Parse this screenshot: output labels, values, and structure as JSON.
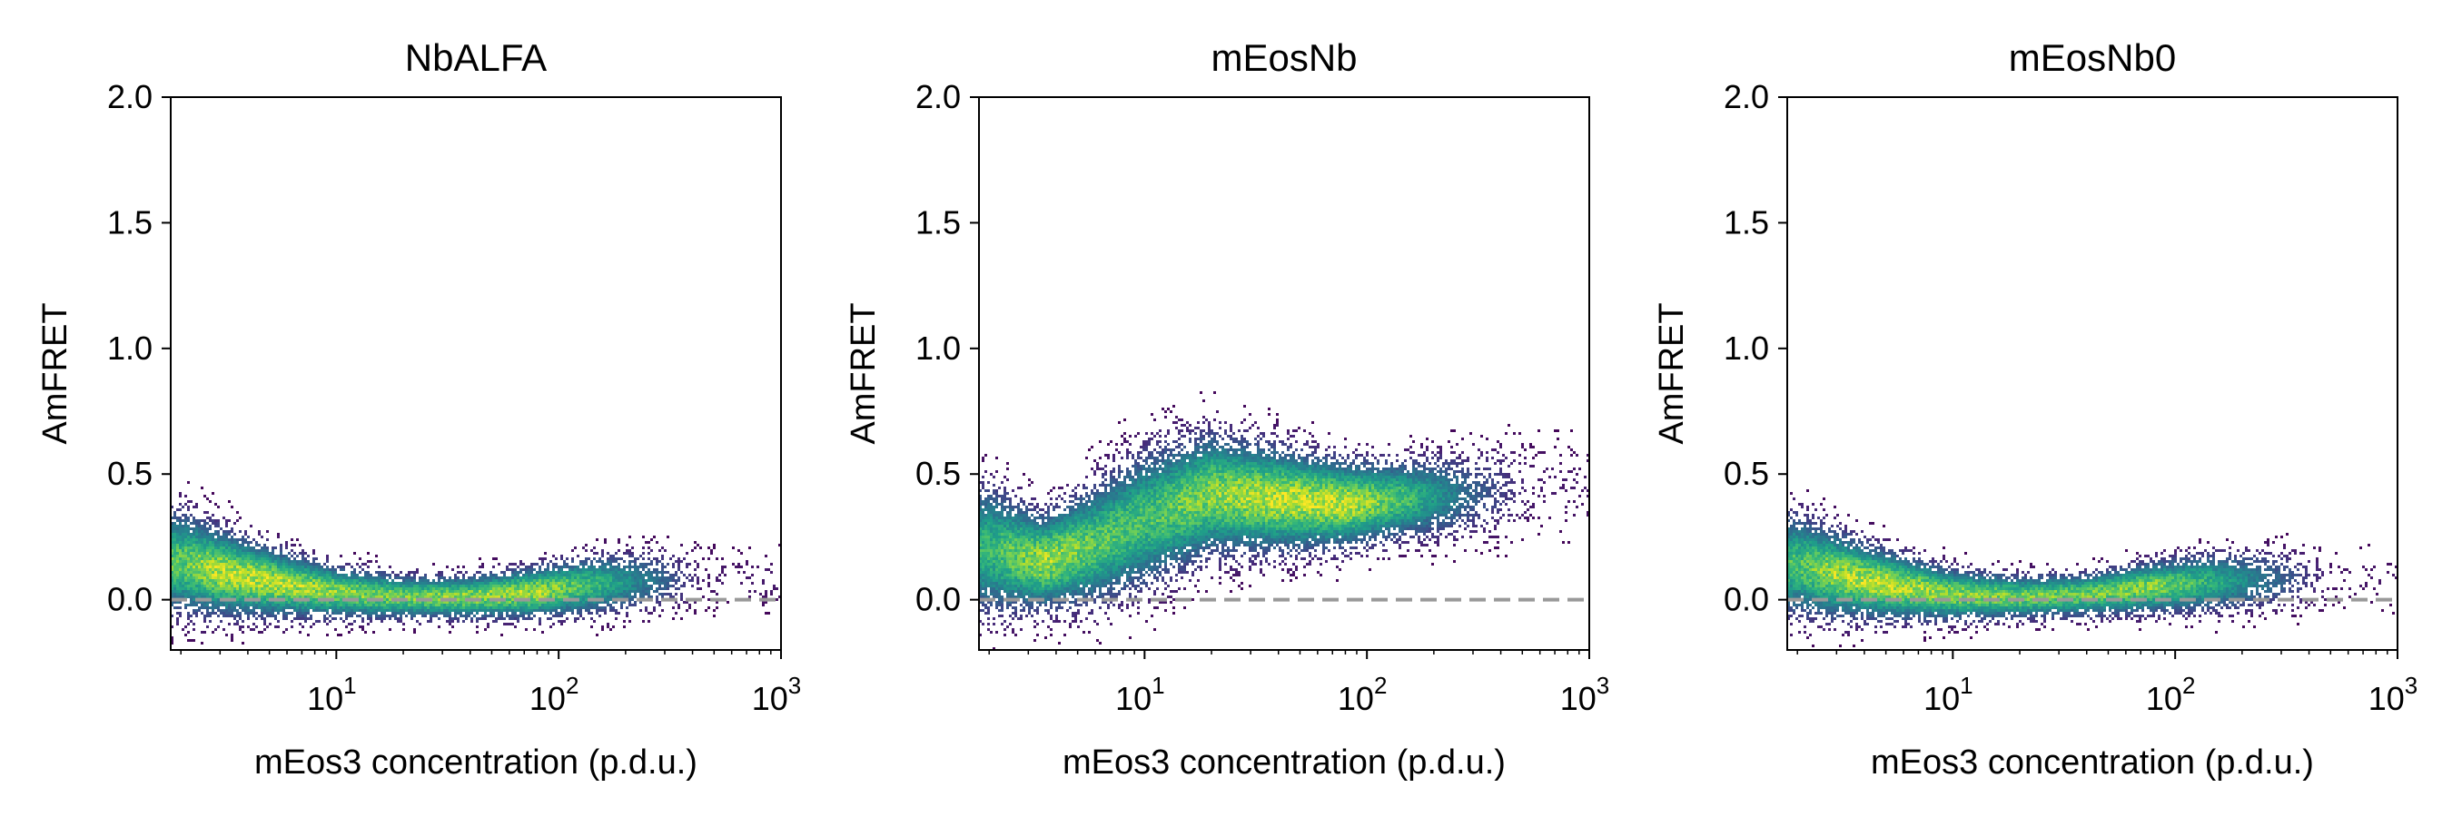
{
  "chart_data": [
    {
      "type": "heatmap",
      "title": "NbALFA",
      "xlabel": "mEos3 concentration (p.d.u.)",
      "ylabel": "AmFRET",
      "x_scale": "log",
      "xlim": [
        1.8,
        1000
      ],
      "ylim": [
        -0.2,
        2.0
      ],
      "x_ticks": [
        10,
        100,
        1000
      ],
      "x_tick_labels": [
        "10",
        "10",
        "10"
      ],
      "x_tick_exponents": [
        "1",
        "2",
        "3"
      ],
      "y_ticks": [
        0.0,
        0.5,
        1.0,
        1.5,
        2.0
      ],
      "y_tick_labels": [
        "0.0",
        "0.5",
        "1.0",
        "1.5",
        "2.0"
      ],
      "reference_line": {
        "y": 0.0,
        "style": "dashed",
        "color": "#999999"
      },
      "colormap": "viridis",
      "density_trend": [
        {
          "x": 2,
          "y": 0.15,
          "spread": 0.12,
          "weight": 0.8
        },
        {
          "x": 3,
          "y": 0.11,
          "spread": 0.1,
          "weight": 1.0
        },
        {
          "x": 5,
          "y": 0.07,
          "spread": 0.08,
          "weight": 1.0
        },
        {
          "x": 10,
          "y": 0.03,
          "spread": 0.06,
          "weight": 0.9
        },
        {
          "x": 20,
          "y": 0.01,
          "spread": 0.05,
          "weight": 0.85
        },
        {
          "x": 40,
          "y": 0.01,
          "spread": 0.05,
          "weight": 0.9
        },
        {
          "x": 80,
          "y": 0.03,
          "spread": 0.06,
          "weight": 0.95
        },
        {
          "x": 150,
          "y": 0.06,
          "spread": 0.07,
          "weight": 0.7
        },
        {
          "x": 300,
          "y": 0.08,
          "spread": 0.07,
          "weight": 0.3
        },
        {
          "x": 450,
          "y": 0.08,
          "spread": 0.08,
          "weight": 0.06
        }
      ]
    },
    {
      "type": "heatmap",
      "title": "mEosNb",
      "xlabel": "mEos3 concentration (p.d.u.)",
      "ylabel": "AmFRET",
      "x_scale": "log",
      "xlim": [
        1.8,
        1000
      ],
      "ylim": [
        -0.2,
        2.0
      ],
      "x_ticks": [
        10,
        100,
        1000
      ],
      "x_tick_labels": [
        "10",
        "10",
        "10"
      ],
      "x_tick_exponents": [
        "1",
        "2",
        "3"
      ],
      "y_ticks": [
        0.0,
        0.5,
        1.0,
        1.5,
        2.0
      ],
      "y_tick_labels": [
        "0.0",
        "0.5",
        "1.0",
        "1.5",
        "2.0"
      ],
      "reference_line": {
        "y": 0.0,
        "style": "dashed",
        "color": "#999999"
      },
      "colormap": "viridis",
      "density_trend": [
        {
          "x": 2,
          "y": 0.2,
          "spread": 0.15,
          "weight": 0.7
        },
        {
          "x": 3.5,
          "y": 0.15,
          "spread": 0.11,
          "weight": 0.95
        },
        {
          "x": 6,
          "y": 0.22,
          "spread": 0.14,
          "weight": 0.8
        },
        {
          "x": 10,
          "y": 0.32,
          "spread": 0.16,
          "weight": 0.75
        },
        {
          "x": 20,
          "y": 0.42,
          "spread": 0.14,
          "weight": 0.9
        },
        {
          "x": 40,
          "y": 0.4,
          "spread": 0.12,
          "weight": 1.0
        },
        {
          "x": 80,
          "y": 0.38,
          "spread": 0.1,
          "weight": 1.0
        },
        {
          "x": 150,
          "y": 0.4,
          "spread": 0.09,
          "weight": 0.75
        },
        {
          "x": 300,
          "y": 0.42,
          "spread": 0.1,
          "weight": 0.3
        },
        {
          "x": 550,
          "y": 0.45,
          "spread": 0.12,
          "weight": 0.06
        }
      ]
    },
    {
      "type": "heatmap",
      "title": "mEosNb0",
      "xlabel": "mEos3 concentration (p.d.u.)",
      "ylabel": "AmFRET",
      "x_scale": "log",
      "xlim": [
        1.8,
        1000
      ],
      "ylim": [
        -0.2,
        2.0
      ],
      "x_ticks": [
        10,
        100,
        1000
      ],
      "x_tick_labels": [
        "10",
        "10",
        "10"
      ],
      "x_tick_exponents": [
        "1",
        "2",
        "3"
      ],
      "y_ticks": [
        0.0,
        0.5,
        1.0,
        1.5,
        2.0
      ],
      "y_tick_labels": [
        "0.0",
        "0.5",
        "1.0",
        "1.5",
        "2.0"
      ],
      "reference_line": {
        "y": 0.0,
        "style": "dashed",
        "color": "#999999"
      },
      "colormap": "viridis",
      "density_trend": [
        {
          "x": 2,
          "y": 0.14,
          "spread": 0.12,
          "weight": 0.75
        },
        {
          "x": 3,
          "y": 0.1,
          "spread": 0.1,
          "weight": 0.95
        },
        {
          "x": 5,
          "y": 0.06,
          "spread": 0.08,
          "weight": 1.0
        },
        {
          "x": 10,
          "y": 0.02,
          "spread": 0.06,
          "weight": 0.9
        },
        {
          "x": 20,
          "y": 0.01,
          "spread": 0.05,
          "weight": 0.85
        },
        {
          "x": 40,
          "y": 0.02,
          "spread": 0.05,
          "weight": 0.85
        },
        {
          "x": 80,
          "y": 0.05,
          "spread": 0.06,
          "weight": 0.9
        },
        {
          "x": 150,
          "y": 0.07,
          "spread": 0.07,
          "weight": 0.65
        },
        {
          "x": 300,
          "y": 0.08,
          "spread": 0.07,
          "weight": 0.3
        },
        {
          "x": 500,
          "y": 0.08,
          "spread": 0.08,
          "weight": 0.05
        }
      ]
    }
  ]
}
